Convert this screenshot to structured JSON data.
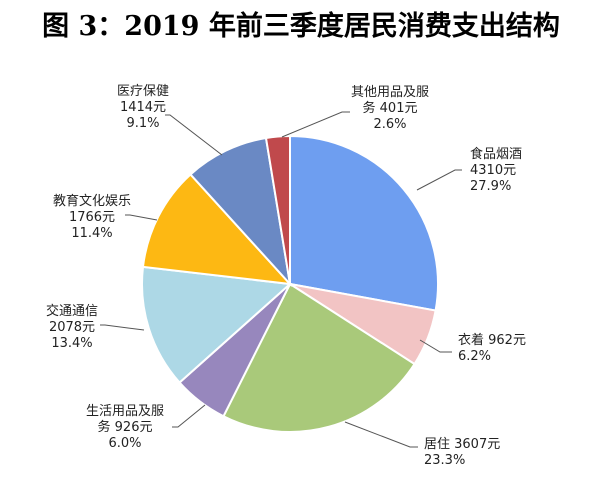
{
  "chart_data": {
    "type": "pie",
    "title": "图 3：2019 年前三季度居民消费支出结构",
    "unit": "元",
    "start_angle_deg": 0,
    "direction": "clockwise",
    "slices": [
      {
        "key": "food",
        "name_lines": [
          "食品烟酒"
        ],
        "value_text": "4310元",
        "value": 4310,
        "percent": 27.9,
        "percent_text": "27.9%",
        "color": "#6E9EF0"
      },
      {
        "key": "clothing",
        "name_lines": [
          "衣着 962元"
        ],
        "value_text": "",
        "value": 962,
        "percent": 6.2,
        "percent_text": "6.2%",
        "color": "#F2C4C4"
      },
      {
        "key": "housing",
        "name_lines": [
          "居住 3607元"
        ],
        "value_text": "",
        "value": 3607,
        "percent": 23.3,
        "percent_text": "23.3%",
        "color": "#A9C97A"
      },
      {
        "key": "household",
        "name_lines": [
          "生活用品及服",
          "务 926元"
        ],
        "value_text": "",
        "value": 926,
        "percent": 6.0,
        "percent_text": "6.0%",
        "color": "#9787BD"
      },
      {
        "key": "transport",
        "name_lines": [
          "交通通信"
        ],
        "value_text": "2078元",
        "value": 2078,
        "percent": 13.4,
        "percent_text": "13.4%",
        "color": "#ADD8E6"
      },
      {
        "key": "education",
        "name_lines": [
          "教育文化娱乐"
        ],
        "value_text": "1766元",
        "value": 1766,
        "percent": 11.4,
        "percent_text": "11.4%",
        "color": "#FDB813"
      },
      {
        "key": "healthcare",
        "name_lines": [
          "医疗保健"
        ],
        "value_text": "1414元",
        "value": 1414,
        "percent": 9.1,
        "percent_text": "9.1%",
        "color": "#6A89C4"
      },
      {
        "key": "other",
        "name_lines": [
          "其他用品及服",
          "务 401元"
        ],
        "value_text": "",
        "value": 401,
        "percent": 2.6,
        "percent_text": "2.6%",
        "color": "#C0494C"
      }
    ]
  }
}
